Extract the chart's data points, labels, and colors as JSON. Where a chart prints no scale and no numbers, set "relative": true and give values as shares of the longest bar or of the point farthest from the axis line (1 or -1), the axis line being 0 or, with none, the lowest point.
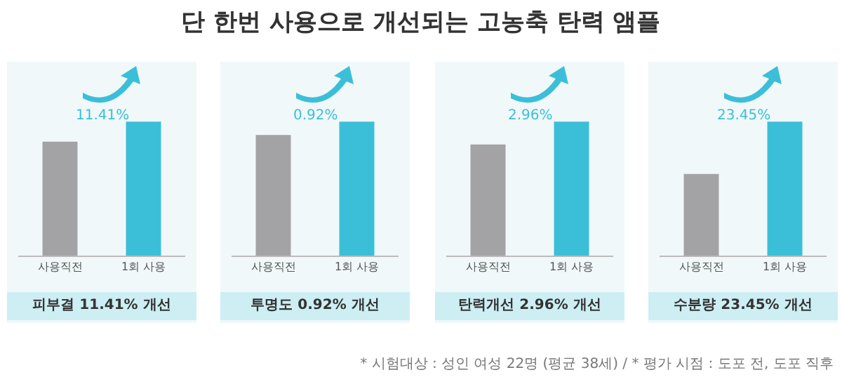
{
  "chart_data": [
    {
      "type": "other",
      "title": "단 한번 사용으로 개선되는 고농축 탄력 앰플",
      "annotations": [
        "* 시험대상 : 성인 여성 22명 (평균 38세)  /  * 평가 시점 : 도포 전, 도포 직후"
      ]
    },
    {
      "type": "bar",
      "relative": true,
      "title": "피부결 11.41% 개선",
      "categories": [
        "사용직전",
        "1회 사용"
      ],
      "values": [
        0.85,
        1
      ],
      "colors": [
        "#a3a3a5",
        "#3bbfd8"
      ],
      "annotations": [
        "11.41%"
      ]
    },
    {
      "type": "bar",
      "relative": true,
      "title": "투명도 0.92% 개선",
      "categories": [
        "사용직전",
        "1회 사용"
      ],
      "values": [
        0.9,
        1
      ],
      "colors": [
        "#a3a3a5",
        "#3bbfd8"
      ],
      "annotations": [
        "0.92%"
      ]
    },
    {
      "type": "bar",
      "relative": true,
      "title": "탄력개선 2.96% 개선",
      "categories": [
        "사용직전",
        "1회 사용"
      ],
      "values": [
        0.83,
        1
      ],
      "colors": [
        "#a3a3a5",
        "#3bbfd8"
      ],
      "annotations": [
        "2.96%"
      ]
    },
    {
      "type": "bar",
      "relative": true,
      "title": "수분량 23.45% 개선",
      "categories": [
        "사용직전",
        "1회 사용"
      ],
      "values": [
        0.61,
        1
      ],
      "colors": [
        "#a3a3a5",
        "#3bbfd8"
      ],
      "annotations": [
        "23.45%"
      ]
    }
  ]
}
